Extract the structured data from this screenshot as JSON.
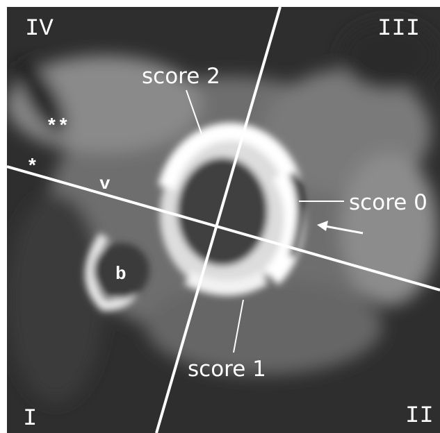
{
  "quadrants": {
    "top_left": "IV",
    "top_right": "III",
    "bottom_left": "I",
    "bottom_right": "II"
  },
  "scores": {
    "top": "score 2",
    "right": "score 0",
    "bottom": "score 1"
  },
  "markers": {
    "double_star": "**",
    "star": "*",
    "v": "v",
    "b": "b"
  }
}
